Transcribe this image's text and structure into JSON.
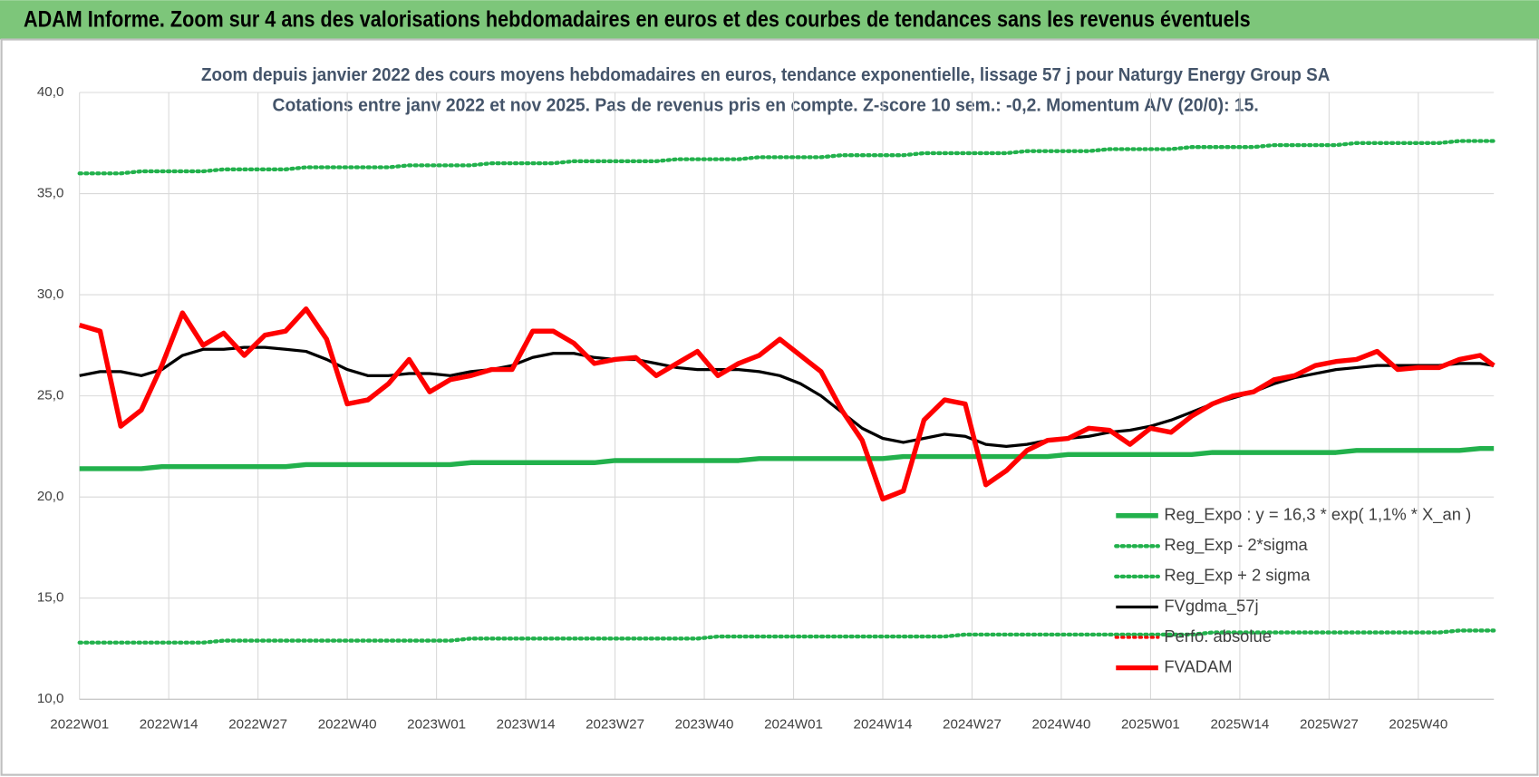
{
  "header": {
    "title": "ADAM Informe. Zoom sur 4 ans des valorisations hebdomadaires en euros et des courbes de tendances sans les revenus éventuels"
  },
  "chart_data": {
    "type": "line",
    "title": "Zoom depuis janvier 2022 des cours moyens hebdomadaires en euros, tendance exponentielle, lissage 57 j pour Naturgy Energy Group SA",
    "subtitle": "Cotations entre janv 2022 et nov 2025. Pas de revenus pris en compte. Z-score 10 sem.: -0,2. Momentum A/V (20/0): 15.",
    "x": [
      0,
      3,
      6,
      9,
      12,
      15,
      18,
      21,
      24,
      27,
      30,
      33,
      36,
      39,
      42,
      45,
      48,
      51,
      54,
      57,
      60,
      63,
      66,
      69,
      72,
      75,
      78,
      81,
      84,
      87,
      90,
      93,
      96,
      99,
      102,
      105,
      108,
      111,
      114,
      117,
      120,
      123,
      126,
      129,
      132,
      135,
      138,
      141,
      144,
      147,
      150,
      153,
      156,
      159,
      162,
      165,
      168,
      171,
      174,
      177,
      180,
      183,
      186,
      189,
      192,
      195,
      198,
      201,
      204,
      206
    ],
    "xlim": [
      0,
      206
    ],
    "xticks": [
      {
        "value": 0,
        "label": "2022W01"
      },
      {
        "value": 13,
        "label": "2022W14"
      },
      {
        "value": 26,
        "label": "2022W27"
      },
      {
        "value": 39,
        "label": "2022W40"
      },
      {
        "value": 52,
        "label": "2023W01"
      },
      {
        "value": 65,
        "label": "2023W14"
      },
      {
        "value": 78,
        "label": "2023W27"
      },
      {
        "value": 91,
        "label": "2023W40"
      },
      {
        "value": 104,
        "label": "2024W01"
      },
      {
        "value": 117,
        "label": "2024W14"
      },
      {
        "value": 130,
        "label": "2024W27"
      },
      {
        "value": 143,
        "label": "2024W40"
      },
      {
        "value": 156,
        "label": "2025W01"
      },
      {
        "value": 169,
        "label": "2025W14"
      },
      {
        "value": 182,
        "label": "2025W27"
      },
      {
        "value": 195,
        "label": "2025W40"
      }
    ],
    "ylim": [
      10,
      40
    ],
    "yticks": [
      {
        "value": 10,
        "label": "10,0"
      },
      {
        "value": 15,
        "label": "15,0"
      },
      {
        "value": 20,
        "label": "20,0"
      },
      {
        "value": 25,
        "label": "25,0"
      },
      {
        "value": 30,
        "label": "30,0"
      },
      {
        "value": 35,
        "label": "35,0"
      },
      {
        "value": 40,
        "label": "40,0"
      }
    ],
    "grid": true,
    "legend": "lower right",
    "series": [
      {
        "name": "Reg_Expo : y = 16,3 * exp( 1,1% * X_an )",
        "color": "#22b14c",
        "dash": "solid",
        "width": 5,
        "values": [
          21.4,
          21.4,
          21.4,
          21.4,
          21.5,
          21.5,
          21.5,
          21.5,
          21.5,
          21.5,
          21.5,
          21.6,
          21.6,
          21.6,
          21.6,
          21.6,
          21.6,
          21.6,
          21.6,
          21.7,
          21.7,
          21.7,
          21.7,
          21.7,
          21.7,
          21.7,
          21.8,
          21.8,
          21.8,
          21.8,
          21.8,
          21.8,
          21.8,
          21.9,
          21.9,
          21.9,
          21.9,
          21.9,
          21.9,
          21.9,
          22.0,
          22.0,
          22.0,
          22.0,
          22.0,
          22.0,
          22.0,
          22.0,
          22.1,
          22.1,
          22.1,
          22.1,
          22.1,
          22.1,
          22.1,
          22.2,
          22.2,
          22.2,
          22.2,
          22.2,
          22.2,
          22.2,
          22.3,
          22.3,
          22.3,
          22.3,
          22.3,
          22.3,
          22.4,
          22.4
        ]
      },
      {
        "name": "Reg_Exp - 2*sigma",
        "color": "#22b14c",
        "dash": "dotted",
        "width": 4,
        "values": [
          12.8,
          12.8,
          12.8,
          12.8,
          12.8,
          12.8,
          12.8,
          12.9,
          12.9,
          12.9,
          12.9,
          12.9,
          12.9,
          12.9,
          12.9,
          12.9,
          12.9,
          12.9,
          12.9,
          13.0,
          13.0,
          13.0,
          13.0,
          13.0,
          13.0,
          13.0,
          13.0,
          13.0,
          13.0,
          13.0,
          13.0,
          13.1,
          13.1,
          13.1,
          13.1,
          13.1,
          13.1,
          13.1,
          13.1,
          13.1,
          13.1,
          13.1,
          13.1,
          13.2,
          13.2,
          13.2,
          13.2,
          13.2,
          13.2,
          13.2,
          13.2,
          13.2,
          13.2,
          13.2,
          13.2,
          13.3,
          13.3,
          13.3,
          13.3,
          13.3,
          13.3,
          13.3,
          13.3,
          13.3,
          13.3,
          13.3,
          13.3,
          13.4,
          13.4,
          13.4
        ]
      },
      {
        "name": "Reg_Exp + 2 sigma",
        "color": "#22b14c",
        "dash": "dotted",
        "width": 4,
        "values": [
          36.0,
          36.0,
          36.0,
          36.1,
          36.1,
          36.1,
          36.1,
          36.2,
          36.2,
          36.2,
          36.2,
          36.3,
          36.3,
          36.3,
          36.3,
          36.3,
          36.4,
          36.4,
          36.4,
          36.4,
          36.5,
          36.5,
          36.5,
          36.5,
          36.6,
          36.6,
          36.6,
          36.6,
          36.6,
          36.7,
          36.7,
          36.7,
          36.7,
          36.8,
          36.8,
          36.8,
          36.8,
          36.9,
          36.9,
          36.9,
          36.9,
          37.0,
          37.0,
          37.0,
          37.0,
          37.0,
          37.1,
          37.1,
          37.1,
          37.1,
          37.2,
          37.2,
          37.2,
          37.2,
          37.3,
          37.3,
          37.3,
          37.3,
          37.4,
          37.4,
          37.4,
          37.4,
          37.5,
          37.5,
          37.5,
          37.5,
          37.5,
          37.6,
          37.6,
          37.6
        ]
      },
      {
        "name": "FVgdma_57j",
        "color": "#000000",
        "dash": "solid",
        "width": 3,
        "values": [
          26.0,
          26.2,
          26.2,
          26.0,
          26.3,
          27.0,
          27.3,
          27.3,
          27.4,
          27.4,
          27.3,
          27.2,
          26.8,
          26.3,
          26.0,
          26.0,
          26.1,
          26.1,
          26.0,
          26.2,
          26.3,
          26.5,
          26.9,
          27.1,
          27.1,
          26.9,
          26.8,
          26.8,
          26.6,
          26.4,
          26.3,
          26.3,
          26.3,
          26.2,
          26.0,
          25.6,
          25.0,
          24.2,
          23.4,
          22.9,
          22.7,
          22.9,
          23.1,
          23.0,
          22.6,
          22.5,
          22.6,
          22.8,
          22.9,
          23.0,
          23.2,
          23.3,
          23.5,
          23.8,
          24.2,
          24.6,
          24.9,
          25.2,
          25.6,
          25.9,
          26.1,
          26.3,
          26.4,
          26.5,
          26.5,
          26.5,
          26.5,
          26.6,
          26.6,
          26.5
        ]
      },
      {
        "name": "Perfo. absolue",
        "color": "#ff0000",
        "dash": "dotted",
        "width": 3,
        "values": [
          null,
          null,
          null,
          null,
          null,
          null,
          null,
          null,
          null,
          null,
          null,
          null,
          null,
          null,
          null,
          null,
          null,
          null,
          null,
          null,
          null,
          null,
          null,
          null,
          null,
          null,
          null,
          null,
          null,
          null,
          null,
          null,
          null,
          null,
          null,
          null,
          null,
          null,
          null,
          null,
          null,
          null,
          null,
          null,
          null,
          null,
          null,
          null,
          null,
          null,
          null,
          null,
          null,
          null,
          null,
          null,
          null,
          null,
          null,
          null,
          null,
          null,
          null,
          null,
          null,
          null,
          null,
          null,
          null,
          null
        ]
      },
      {
        "name": "FVADAM",
        "color": "#ff0000",
        "dash": "solid",
        "width": 5,
        "values": [
          28.5,
          28.2,
          23.5,
          24.3,
          26.5,
          29.1,
          27.5,
          28.1,
          27.0,
          28.0,
          28.2,
          29.3,
          27.8,
          24.6,
          24.8,
          25.6,
          26.8,
          25.2,
          25.8,
          26.0,
          26.3,
          26.3,
          28.2,
          28.2,
          27.6,
          26.6,
          26.8,
          26.9,
          26.0,
          26.6,
          27.2,
          26.0,
          26.6,
          27.0,
          27.8,
          27.0,
          26.2,
          24.3,
          22.8,
          19.9,
          20.3,
          23.8,
          24.8,
          24.6,
          20.6,
          21.3,
          22.3,
          22.8,
          22.9,
          23.4,
          23.3,
          22.6,
          23.4,
          23.2,
          24.0,
          24.6,
          25.0,
          25.2,
          25.8,
          26.0,
          26.5,
          26.7,
          26.8,
          27.2,
          26.3,
          26.4,
          26.4,
          26.8,
          27.0,
          26.5
        ]
      }
    ]
  }
}
